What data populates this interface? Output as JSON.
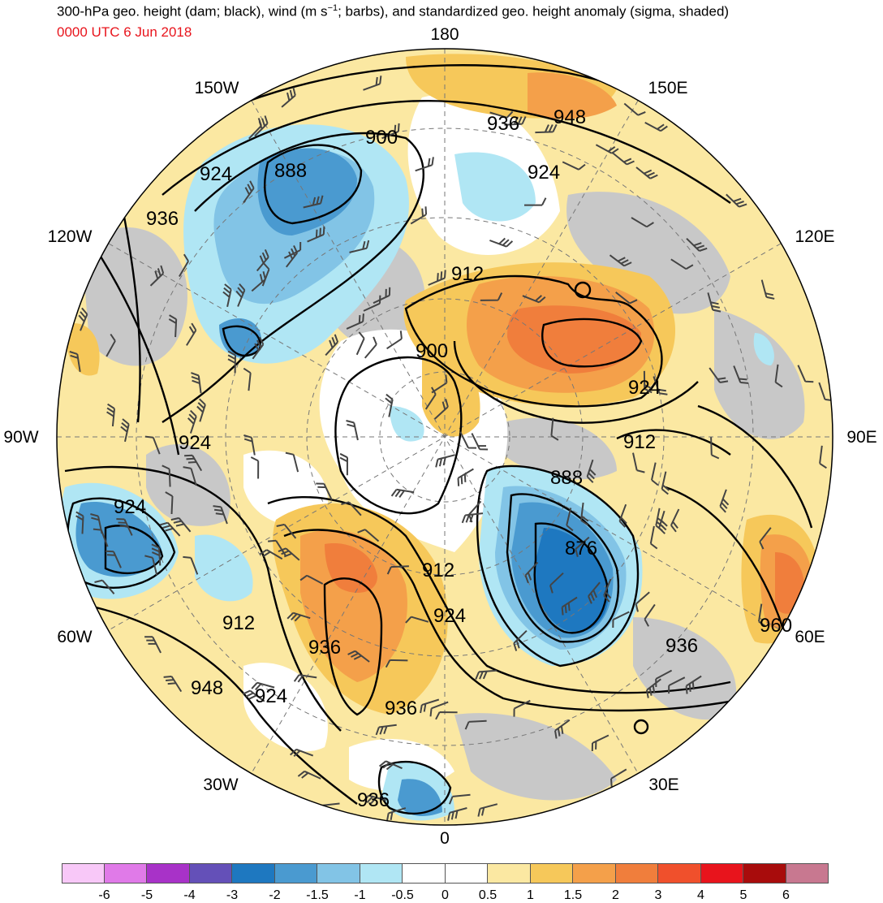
{
  "title_parts": {
    "before_sup": "300-hPa geo. height (dam; black), wind (m s",
    "sup": "−1",
    "after_sup": "; barbs), and standardized geo. height anomaly (sigma, shaded)"
  },
  "valid_time": "0000 UTC 6 Jun 2018",
  "colors": {
    "contour": "#000000",
    "land_gray": "#c8c8c8",
    "title_time": "#e8141c"
  },
  "longitude_labels": {
    "top": "180",
    "bottom": "0",
    "left": "90W",
    "right": "90E",
    "upper_left": "150W",
    "upper_right": "150E",
    "mid_upper_left": "120W",
    "mid_upper_right": "120E",
    "mid_lower_left": "60W",
    "mid_lower_right": "60E",
    "lower_left": "30W",
    "lower_right": "30E"
  },
  "contour_labels": [
    {
      "id": "c-948-ne",
      "text": "948"
    },
    {
      "id": "c-936-n",
      "text": "936"
    },
    {
      "id": "c-900-nw",
      "text": "900"
    },
    {
      "id": "c-888-nw",
      "text": "888"
    },
    {
      "id": "c-924-nw",
      "text": "924"
    },
    {
      "id": "c-924-n",
      "text": "924"
    },
    {
      "id": "c-936-wnw",
      "text": "936"
    },
    {
      "id": "c-912-center",
      "text": "912"
    },
    {
      "id": "c-900-center",
      "text": "900"
    },
    {
      "id": "c-924-east",
      "text": "924"
    },
    {
      "id": "c-912-east",
      "text": "912"
    },
    {
      "id": "c-924-west",
      "text": "924"
    },
    {
      "id": "c-888-east",
      "text": "888"
    },
    {
      "id": "c-924-farwest",
      "text": "924"
    },
    {
      "id": "c-876",
      "text": "876"
    },
    {
      "id": "c-912-south",
      "text": "912"
    },
    {
      "id": "c-924-south",
      "text": "924"
    },
    {
      "id": "c-912-sw",
      "text": "912"
    },
    {
      "id": "c-936-south",
      "text": "936"
    },
    {
      "id": "c-936-se",
      "text": "936"
    },
    {
      "id": "c-960",
      "text": "960"
    },
    {
      "id": "c-948-sw",
      "text": "948"
    },
    {
      "id": "c-924-ssw",
      "text": "924"
    },
    {
      "id": "c-936-ssw",
      "text": "936"
    },
    {
      "id": "c-936-bottom",
      "text": "936"
    }
  ],
  "colorbar": {
    "colors": [
      "#f8c8f8",
      "#e07ae8",
      "#a832c8",
      "#6450b8",
      "#1e78c0",
      "#4a9ad0",
      "#82c4e6",
      "#b0e6f4",
      "#ffffff",
      "#ffffff",
      "#fbe8a2",
      "#f6c85a",
      "#f4a04a",
      "#f07e3c",
      "#f0502c",
      "#e8141c",
      "#a80c0c",
      "#c87890"
    ],
    "tick_labels": [
      "-6",
      "-5",
      "-4",
      "-3",
      "-2",
      "-1.5",
      "-1",
      "-0.5",
      "0",
      "0.5",
      "1",
      "1.5",
      "2",
      "3",
      "4",
      "5",
      "6"
    ]
  }
}
